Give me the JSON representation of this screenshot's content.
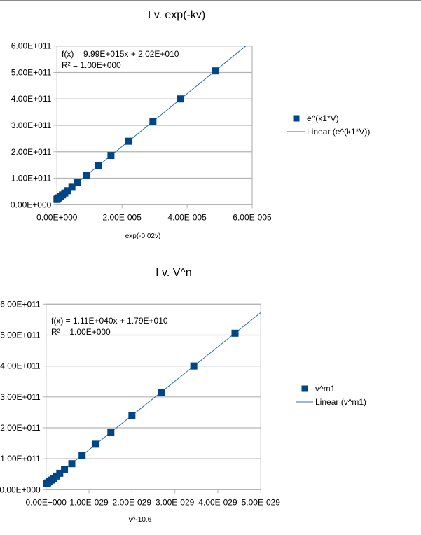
{
  "colors": {
    "marker": "#004586",
    "trend": "#2e6eb5",
    "grid": "#b3b3b3"
  },
  "chart_data": [
    {
      "type": "scatter",
      "title": "I v. exp(-kv)",
      "xlabel": "exp(-0.02v)",
      "ylabel": "",
      "xlim": [
        0,
        6e-05
      ],
      "ylim": [
        0,
        600000000000.0
      ],
      "x_ticks": [
        "0.00E+000",
        "2.00E-005",
        "4.00E-005",
        "6.00E-005"
      ],
      "y_ticks": [
        "0.00E+000",
        "1.00E+011",
        "2.00E+011",
        "3.00E+011",
        "4.00E+011",
        "5.00E+011",
        "6.00E+011"
      ],
      "grid": "horizontal",
      "legend_position": "right",
      "series": [
        {
          "name": "e^(k1*V)",
          "x": [
            4.86e-05,
            3.8e-05,
            2.95e-05,
            2.2e-05,
            1.66e-05,
            1.27e-05,
            9.1e-06,
            6.4e-06,
            4.6e-06,
            3.3e-06,
            2.4e-06,
            1.7e-06,
            1.1e-06,
            6e-07,
            2e-07,
            0
          ],
          "y": [
            506000000000.0,
            400000000000.0,
            315000000000.0,
            240000000000.0,
            186000000000.0,
            147000000000.0,
            111000000000.0,
            84000000000.0,
            66000000000.0,
            53000000000.0,
            44000000000.0,
            37000000000.0,
            31000000000.0,
            26000000000.0,
            22000000000.0,
            20000000000.0
          ]
        }
      ],
      "trendline": {
        "name": "Linear (e^(k1*V))",
        "slope": 9990000000000000.0,
        "intercept": 20200000000.0,
        "equation": "f(x) = 9.99E+015x + 2.02E+010",
        "r2": "R² = 1.00E+000"
      }
    },
    {
      "type": "scatter",
      "title": "I v. V^n",
      "xlabel": "v^-10.6",
      "ylabel": "",
      "xlim": [
        0,
        5e-29
      ],
      "ylim": [
        0,
        600000000000.0
      ],
      "x_ticks": [
        "0.00E+000",
        "1.00E-029",
        "2.00E-029",
        "3.00E-029",
        "4.00E-029",
        "5.00E-029"
      ],
      "y_ticks": [
        "0.00E+000",
        "1.00E+011",
        "2.00E+011",
        "3.00E+011",
        "4.00E+011",
        "5.00E+011",
        "6.00E+011"
      ],
      "grid": "horizontal",
      "legend_position": "right",
      "series": [
        {
          "name": "v^m1",
          "x": [
            4.4e-29,
            3.44e-29,
            2.68e-29,
            2e-29,
            1.51e-29,
            1.16e-29,
            8.4e-30,
            6e-30,
            4.3e-30,
            3.2e-30,
            2.4e-30,
            1.7e-30,
            1.2e-30,
            7e-31,
            4e-31,
            1e-31
          ],
          "y": [
            506000000000.0,
            400000000000.0,
            315000000000.0,
            240000000000.0,
            186000000000.0,
            147000000000.0,
            111000000000.0,
            84000000000.0,
            66000000000.0,
            53000000000.0,
            44000000000.0,
            37000000000.0,
            31000000000.0,
            26000000000.0,
            22000000000.0,
            19000000000.0
          ]
        }
      ],
      "trendline": {
        "name": "Linear (v^m1)",
        "slope": 1.11e+40,
        "intercept": 17900000000.0,
        "equation": "f(x) = 1.11E+040x + 1.79E+010",
        "r2": "R² = 1.00E+000"
      }
    }
  ]
}
